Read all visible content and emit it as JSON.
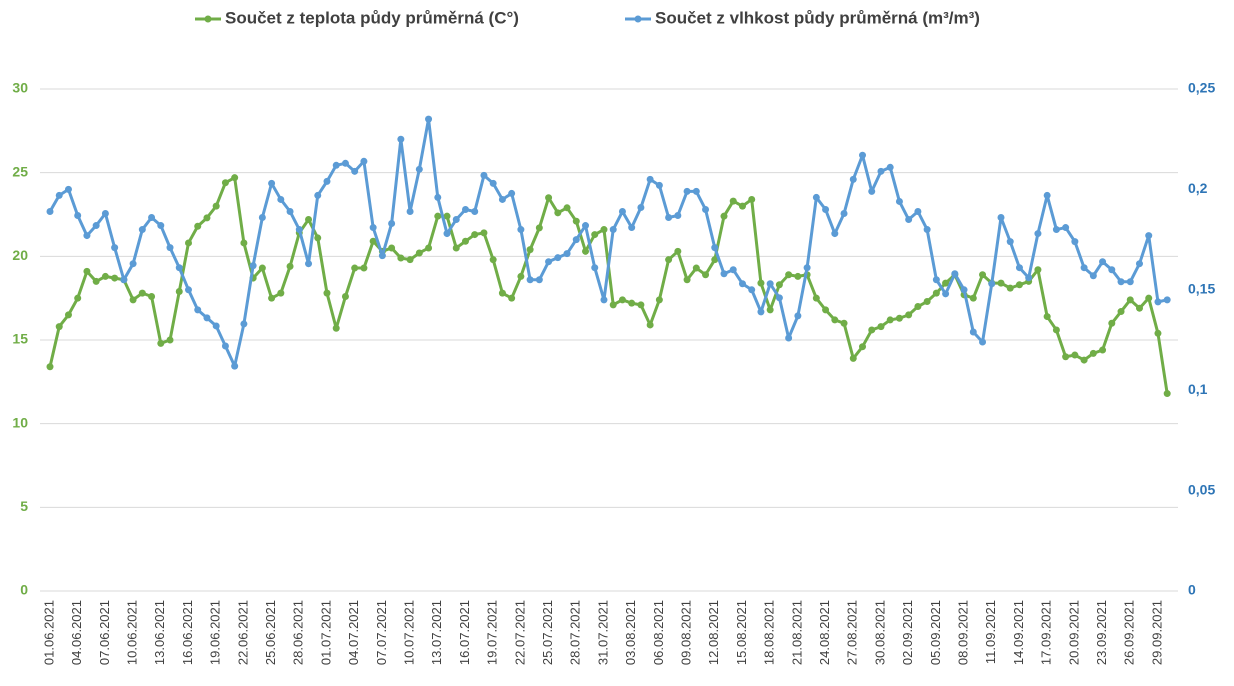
{
  "chart_data": {
    "type": "line",
    "categories": [
      "01.06.2021",
      null,
      null,
      "04.06.2021",
      null,
      null,
      "07.06.2021",
      null,
      null,
      "10.06.2021",
      null,
      null,
      "13.06.2021",
      null,
      null,
      "16.06.2021",
      null,
      null,
      "19.06.2021",
      null,
      null,
      "22.06.2021",
      null,
      null,
      "25.06.2021",
      null,
      null,
      "28.06.2021",
      null,
      null,
      "01.07.2021",
      null,
      null,
      "04.07.2021",
      null,
      null,
      "07.07.2021",
      null,
      null,
      "10.07.2021",
      null,
      null,
      "13.07.2021",
      null,
      null,
      "16.07.2021",
      null,
      null,
      "19.07.2021",
      null,
      null,
      "22.07.2021",
      null,
      null,
      "25.07.2021",
      null,
      null,
      "28.07.2021",
      null,
      null,
      "31.07.2021",
      null,
      null,
      "03.08.2021",
      null,
      null,
      "06.08.2021",
      null,
      null,
      "09.08.2021",
      null,
      null,
      "12.08.2021",
      null,
      null,
      "15.08.2021",
      null,
      null,
      "18.08.2021",
      null,
      null,
      "21.08.2021",
      null,
      null,
      "24.08.2021",
      null,
      null,
      "27.08.2021",
      null,
      null,
      "30.08.2021",
      null,
      null,
      "02.09.2021",
      null,
      null,
      "05.09.2021",
      null,
      null,
      "08.09.2021",
      null,
      null,
      "11.09.2021",
      null,
      null,
      "14.09.2021",
      null,
      null,
      "17.09.2021",
      null,
      null,
      "20.09.2021",
      null,
      null,
      "23.09.2021",
      null,
      null,
      "26.09.2021",
      null,
      null,
      "29.09.2021",
      null
    ],
    "series": [
      {
        "name": "Součet z teplota půdy průměrná (C°)",
        "color": "#70ad47",
        "values": [
          13.4,
          15.8,
          16.5,
          17.5,
          19.1,
          18.5,
          18.8,
          18.7,
          18.6,
          17.4,
          17.8,
          17.6,
          14.8,
          15.0,
          17.9,
          20.8,
          21.8,
          22.3,
          23.0,
          24.4,
          24.7,
          20.8,
          18.7,
          19.3,
          17.5,
          17.8,
          19.4,
          21.4,
          22.2,
          21.1,
          17.8,
          15.7,
          17.6,
          19.3,
          19.3,
          20.9,
          20.3,
          20.5,
          19.9,
          19.8,
          20.2,
          20.5,
          22.4,
          22.4,
          20.5,
          20.9,
          21.3,
          21.4,
          19.8,
          17.8,
          17.5,
          18.8,
          20.4,
          21.7,
          23.5,
          22.6,
          22.9,
          22.1,
          20.3,
          21.3,
          21.6,
          17.1,
          17.4,
          17.2,
          17.1,
          15.9,
          17.4,
          19.8,
          20.3,
          18.6,
          19.3,
          18.9,
          19.8,
          22.4,
          23.3,
          23.0,
          23.4,
          18.4,
          16.8,
          18.3,
          18.9,
          18.8,
          18.9,
          17.5,
          16.8,
          16.2,
          16.0,
          13.9,
          14.6,
          15.6,
          15.8,
          16.2,
          16.3,
          16.5,
          17.0,
          17.3,
          17.8,
          18.4,
          18.9,
          17.7,
          17.5,
          18.9,
          18.4,
          18.4,
          18.1,
          18.3,
          18.5,
          19.2,
          16.4,
          15.6,
          14.0,
          14.1,
          13.8,
          14.2,
          14.4,
          16.0,
          16.7,
          17.4,
          16.9,
          17.5,
          15.4,
          11.8
        ]
      },
      {
        "name": "Součet z vlhkost půdy průměrná (m³/m³)",
        "color": "#5b9bd5",
        "axis": "y2",
        "values": [
          0.189,
          0.197,
          0.2,
          0.187,
          0.177,
          0.182,
          0.188,
          0.171,
          0.155,
          0.163,
          0.18,
          0.186,
          0.182,
          0.171,
          0.161,
          0.15,
          0.14,
          0.136,
          0.132,
          0.122,
          0.112,
          0.133,
          0.162,
          0.186,
          0.203,
          0.195,
          0.189,
          0.18,
          0.163,
          0.197,
          0.204,
          0.212,
          0.213,
          0.209,
          0.214,
          0.181,
          0.167,
          0.183,
          0.225,
          0.189,
          0.21,
          0.235,
          0.196,
          0.178,
          0.185,
          0.19,
          0.189,
          0.207,
          0.203,
          0.195,
          0.198,
          0.18,
          0.155,
          0.155,
          0.164,
          0.166,
          0.168,
          0.175,
          0.182,
          0.161,
          0.145,
          0.18,
          0.189,
          0.181,
          0.191,
          0.205,
          0.202,
          0.186,
          0.187,
          0.199,
          0.199,
          0.19,
          0.171,
          0.158,
          0.16,
          0.153,
          0.15,
          0.139,
          0.153,
          0.146,
          0.126,
          0.137,
          0.161,
          0.196,
          0.19,
          0.178,
          0.188,
          0.205,
          0.217,
          0.199,
          0.209,
          0.211,
          0.194,
          0.185,
          0.189,
          0.18,
          0.155,
          0.148,
          0.158,
          0.15,
          0.129,
          0.124,
          0.153,
          0.186,
          0.174,
          0.161,
          0.156,
          0.178,
          0.197,
          0.18,
          0.181,
          0.174,
          0.161,
          0.157,
          0.164,
          0.16,
          0.154,
          0.154,
          0.163,
          0.177,
          0.144,
          0.145
        ]
      }
    ],
    "ylim": [
      0,
      30
    ],
    "yticks": [
      0,
      5,
      10,
      15,
      20,
      25,
      30
    ],
    "ytick_color": "#70ad47",
    "y2lim": [
      0,
      0.25
    ],
    "y2ticks": [
      {
        "value": 0,
        "label": "0"
      },
      {
        "value": 0.05,
        "label": "0,05"
      },
      {
        "value": 0.1,
        "label": "0,1"
      },
      {
        "value": 0.15,
        "label": "0,15"
      },
      {
        "value": 0.2,
        "label": "0,2"
      },
      {
        "value": 0.25,
        "label": "0,25"
      }
    ],
    "y2tick_color": "#2e75b6",
    "grid": true,
    "legend": "top"
  }
}
